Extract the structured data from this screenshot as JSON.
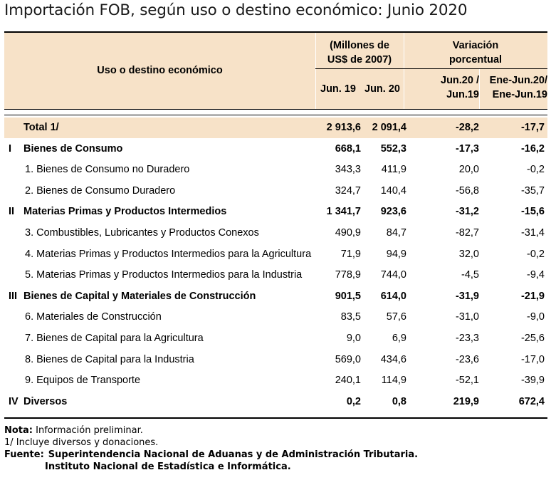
{
  "title": "Importación FOB, según uso o destino económico: Junio 2020",
  "header": {
    "col_label": "Uso o destino económico",
    "group1_line1": "(Millones de",
    "group1_line2": "US$ de 2007)",
    "group2_line1": "Variación",
    "group2_line2": "porcentual",
    "jun19": "Jun. 19",
    "jun20": "Jun. 20",
    "var1_line1": "Jun.20 /",
    "var1_line2": "Jun.19",
    "var2_line1": "Ene-Jun.20/",
    "var2_line2": "Ene-Jun.19"
  },
  "rows": [
    {
      "roman": "",
      "label": "Total    1/",
      "jun19": "2 913,6",
      "jun20": "2 091,4",
      "var1": "-28,2",
      "var2": "-17,7",
      "bold": true
    },
    {
      "roman": "I",
      "label": "Bienes de Consumo",
      "jun19": "668,1",
      "jun20": "552,3",
      "var1": "-17,3",
      "var2": "-16,2",
      "bold": true
    },
    {
      "roman": "",
      "label": "1. Bienes de Consumo no Duradero",
      "jun19": "343,3",
      "jun20": "411,9",
      "var1": "20,0",
      "var2": "-0,2",
      "bold": false
    },
    {
      "roman": "",
      "label": "2. Bienes de Consumo Duradero",
      "jun19": "324,7",
      "jun20": "140,4",
      "var1": "-56,8",
      "var2": "-35,7",
      "bold": false
    },
    {
      "roman": "II",
      "label": "Materias Primas y Productos Intermedios",
      "jun19": "1 341,7",
      "jun20": "923,6",
      "var1": "-31,2",
      "var2": "-15,6",
      "bold": true
    },
    {
      "roman": "",
      "label": "3. Combustibles, Lubricantes y Productos Conexos",
      "jun19": "490,9",
      "jun20": "84,7",
      "var1": "-82,7",
      "var2": "-31,4",
      "bold": false
    },
    {
      "roman": "",
      "label": "4. Materias Primas y Productos Intermedios para la Agricultura",
      "jun19": "71,9",
      "jun20": "94,9",
      "var1": "32,0",
      "var2": "-0,2",
      "bold": false
    },
    {
      "roman": "",
      "label": "5. Materias Primas y Productos Intermedios para la Industria",
      "jun19": "778,9",
      "jun20": "744,0",
      "var1": "-4,5",
      "var2": "-9,4",
      "bold": false
    },
    {
      "roman": "III",
      "label": "Bienes de Capital y Materiales de Construcción",
      "jun19": "901,5",
      "jun20": "614,0",
      "var1": "-31,9",
      "var2": "-21,9",
      "bold": true
    },
    {
      "roman": "",
      "label": "6. Materiales de Construcción",
      "jun19": "83,5",
      "jun20": "57,6",
      "var1": "-31,0",
      "var2": "-9,0",
      "bold": false
    },
    {
      "roman": "",
      "label": "7. Bienes de Capital para la Agricultura",
      "jun19": "9,0",
      "jun20": "6,9",
      "var1": "-23,3",
      "var2": "-25,6",
      "bold": false
    },
    {
      "roman": "",
      "label": "8. Bienes de Capital para la Industria",
      "jun19": "569,0",
      "jun20": "434,6",
      "var1": "-23,6",
      "var2": "-17,0",
      "bold": false
    },
    {
      "roman": "",
      "label": "9. Equipos de Transporte",
      "jun19": "240,1",
      "jun20": "114,9",
      "var1": "-52,1",
      "var2": "-39,9",
      "bold": false
    },
    {
      "roman": "IV",
      "label": "Diversos",
      "jun19": "0,2",
      "jun20": "0,8",
      "var1": "219,9",
      "var2": "672,4",
      "bold": true
    }
  ],
  "notes": {
    "nota_label": "Nota:",
    "nota_text": " Información preliminar.",
    "footnote1": "1/ Incluye diversos y  donaciones.",
    "fuente_label": "Fuente:",
    "fuente_line1": "Superintendencia Nacional de Aduanas y de Administración Tributaria.",
    "fuente_line2": "Instituto Nacional de Estadística e Informática."
  },
  "colors": {
    "header_bg": "#f7e2c8"
  }
}
